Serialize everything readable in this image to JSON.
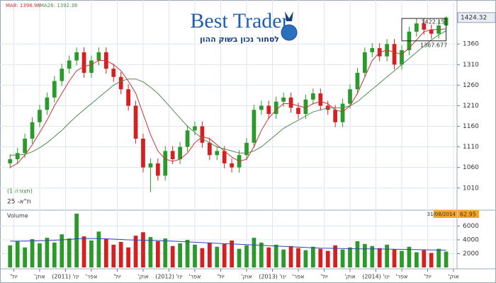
{
  "logo": {
    "title": "Best Trader",
    "tagline": "לסחור נכון בשוק ההון"
  },
  "chart_data": {
    "type": "candlestick",
    "index_name": "ת\"א- 25",
    "config_label": "(תצורה 1)",
    "up_color": "#2a9a2a",
    "down_color": "#d42020",
    "open": [
      1070,
      1080,
      1095,
      1130,
      1170,
      1200,
      1230,
      1270,
      1300,
      1320,
      1340,
      1290,
      1320,
      1340,
      1300,
      1280,
      1250,
      1210,
      1130,
      1060,
      1070,
      1040,
      1100,
      1080,
      1110,
      1150,
      1160,
      1120,
      1090,
      1100,
      1070,
      1060,
      1090,
      1120,
      1200,
      1210,
      1190,
      1220,
      1230,
      1205,
      1190,
      1225,
      1240,
      1210,
      1200,
      1170,
      1215,
      1250,
      1290,
      1340,
      1350,
      1330,
      1360,
      1310,
      1345,
      1390,
      1410,
      1395,
      1385,
      1405
    ],
    "high": [
      1092,
      1107,
      1142,
      1182,
      1212,
      1242,
      1282,
      1312,
      1332,
      1352,
      1352,
      1332,
      1352,
      1352,
      1312,
      1292,
      1262,
      1222,
      1142,
      1082,
      1082,
      1112,
      1112,
      1122,
      1162,
      1172,
      1172,
      1132,
      1112,
      1112,
      1082,
      1102,
      1132,
      1212,
      1222,
      1222,
      1232,
      1242,
      1242,
      1217,
      1237,
      1252,
      1252,
      1222,
      1212,
      1227,
      1262,
      1302,
      1352,
      1362,
      1362,
      1372,
      1372,
      1357,
      1402,
      1422,
      1422,
      1407,
      1417,
      1428
    ],
    "low": [
      1058,
      1068,
      1083,
      1118,
      1158,
      1188,
      1218,
      1258,
      1288,
      1308,
      1278,
      1278,
      1308,
      1288,
      1268,
      1238,
      1198,
      1118,
      1048,
      1000,
      1028,
      1028,
      1068,
      1068,
      1098,
      1138,
      1108,
      1078,
      1078,
      1058,
      1048,
      1048,
      1078,
      1108,
      1188,
      1178,
      1178,
      1208,
      1193,
      1178,
      1178,
      1213,
      1198,
      1188,
      1158,
      1158,
      1203,
      1238,
      1278,
      1328,
      1318,
      1318,
      1298,
      1298,
      1333,
      1378,
      1383,
      1373,
      1373,
      1393
    ],
    "close": [
      1080,
      1095,
      1130,
      1170,
      1200,
      1230,
      1270,
      1300,
      1320,
      1340,
      1290,
      1320,
      1340,
      1300,
      1280,
      1250,
      1210,
      1130,
      1060,
      1070,
      1040,
      1100,
      1080,
      1110,
      1150,
      1160,
      1120,
      1090,
      1100,
      1070,
      1060,
      1090,
      1120,
      1200,
      1210,
      1190,
      1220,
      1230,
      1205,
      1190,
      1225,
      1240,
      1210,
      1200,
      1170,
      1215,
      1250,
      1290,
      1340,
      1350,
      1330,
      1360,
      1310,
      1345,
      1390,
      1410,
      1395,
      1385,
      1405,
      1424.32
    ],
    "ma": [
      {
        "name": "MA8: 1396.96",
        "color": "#d03030",
        "values": [
          1060,
          1070,
          1090,
          1115,
          1145,
          1175,
          1210,
          1240,
          1270,
          1295,
          1305,
          1310,
          1320,
          1320,
          1310,
          1295,
          1270,
          1240,
          1190,
          1140,
          1100,
          1080,
          1075,
          1080,
          1095,
          1120,
          1135,
          1130,
          1115,
          1100,
          1085,
          1075,
          1080,
          1110,
          1150,
          1180,
          1200,
          1215,
          1215,
          1210,
          1205,
          1215,
          1220,
          1215,
          1200,
          1195,
          1210,
          1240,
          1280,
          1320,
          1340,
          1345,
          1340,
          1335,
          1350,
          1370,
          1390,
          1395,
          1395,
          1396.96
        ]
      },
      {
        "name": "MA26: 1392.38",
        "color": "#4f8a4f",
        "values": [
          1090,
          1090,
          1092,
          1098,
          1108,
          1120,
          1135,
          1150,
          1168,
          1185,
          1200,
          1215,
          1230,
          1245,
          1260,
          1270,
          1275,
          1275,
          1268,
          1255,
          1240,
          1220,
          1200,
          1180,
          1160,
          1145,
          1130,
          1120,
          1110,
          1105,
          1100,
          1095,
          1095,
          1100,
          1110,
          1125,
          1140,
          1155,
          1165,
          1175,
          1185,
          1195,
          1200,
          1205,
          1205,
          1205,
          1210,
          1220,
          1235,
          1250,
          1265,
          1280,
          1295,
          1310,
          1325,
          1340,
          1355,
          1370,
          1382,
          1392.38
        ]
      }
    ],
    "range_box": {
      "start": 53,
      "end": 59,
      "high": 1422.15,
      "low": 1367.677
    },
    "xlim": [
      -0.6,
      60
    ],
    "xticks": [
      {
        "value": 0.5,
        "label": "יול'"
      },
      {
        "value": 4,
        "label": "אוק'"
      },
      {
        "value": 7.5,
        "label": "ינו' (2011)"
      },
      {
        "value": 11,
        "label": "אפר'"
      },
      {
        "value": 14.5,
        "label": "יול'"
      },
      {
        "value": 18,
        "label": "אוק'"
      },
      {
        "value": 21.5,
        "label": "ינו' (2012)"
      },
      {
        "value": 25,
        "label": "אפר'"
      },
      {
        "value": 28.5,
        "label": "יול'"
      },
      {
        "value": 32,
        "label": "אוק'"
      },
      {
        "value": 35.5,
        "label": "ינו' (2013)"
      },
      {
        "value": 39,
        "label": "אפר'"
      },
      {
        "value": 42.5,
        "label": "יול'"
      },
      {
        "value": 46,
        "label": "אוק'"
      },
      {
        "value": 49.5,
        "label": "ינו' (2014)"
      },
      {
        "value": 53,
        "label": "אפר'"
      },
      {
        "value": 56.5,
        "label": "יול'"
      },
      {
        "value": 60,
        "label": "אוק'"
      }
    ],
    "ylim": [
      958,
      1467
    ],
    "yticks": [
      1010,
      1060,
      1110,
      1160,
      1210,
      1260,
      1310,
      1360
    ],
    "grid": true,
    "volume": {
      "title": "Volume",
      "values": [
        3200,
        3800,
        2900,
        4100,
        3500,
        4300,
        3600,
        4800,
        4200,
        7800,
        4500,
        3900,
        5200,
        4100,
        3300,
        3700,
        2900,
        4600,
        5100,
        4400,
        3800,
        4200,
        3100,
        3500,
        4000,
        3300,
        2800,
        3600,
        3000,
        3400,
        3900,
        2700,
        3200,
        4300,
        3600,
        2900,
        3300,
        2600,
        3100,
        2800,
        2500,
        3000,
        2700,
        2400,
        3200,
        2600,
        2900,
        3800,
        3400,
        3100,
        2800,
        3300,
        2600,
        2400,
        3000,
        2200,
        2500,
        2100,
        2700,
        2300
      ],
      "average": {
        "color": "#3346b0",
        "values": [
          3800,
          3800,
          3820,
          3850,
          3880,
          3900,
          3950,
          4000,
          4050,
          4150,
          4200,
          4200,
          4200,
          4150,
          4100,
          4050,
          4000,
          3980,
          3950,
          3920,
          3900,
          3850,
          3800,
          3750,
          3700,
          3650,
          3600,
          3550,
          3500,
          3450,
          3400,
          3350,
          3300,
          3250,
          3200,
          3150,
          3100,
          3050,
          3000,
          2950,
          2900,
          2850,
          2800,
          2780,
          2760,
          2740,
          2720,
          2700,
          2700,
          2700,
          2680,
          2660,
          2640,
          2620,
          2600,
          2580,
          2560,
          2540,
          2520,
          2500
        ]
      },
      "ylim": [
        0,
        8000
      ],
      "yticks": [
        2000,
        4000,
        6000
      ],
      "date_label": "31/08/2014",
      "last_label": "62.95"
    }
  }
}
